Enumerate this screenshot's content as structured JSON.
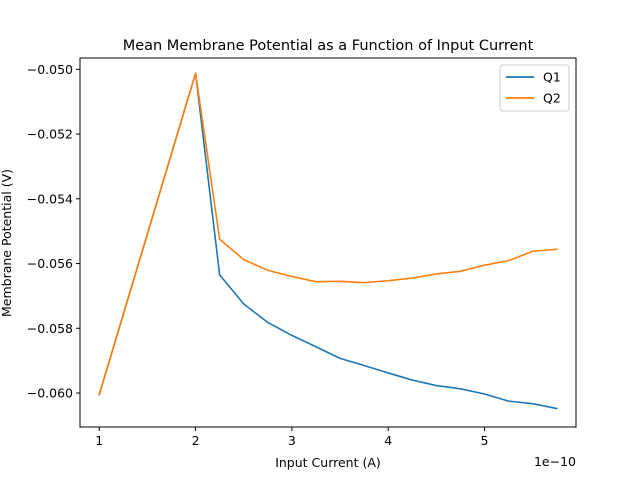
{
  "chart_data": {
    "type": "line",
    "title": "Mean Membrane Potential as a Function of Input Current",
    "xlabel": "Input Current (A)",
    "ylabel": "Membrane Potential (V)",
    "x_offset_label": "1e−10",
    "xlim": [
      0.8,
      5.95
    ],
    "ylim": [
      -0.06105,
      -0.04965
    ],
    "xticks": [
      1,
      2,
      3,
      4,
      5
    ],
    "xtick_labels": [
      "1",
      "2",
      "3",
      "4",
      "5"
    ],
    "yticks": [
      -0.06,
      -0.058,
      -0.056,
      -0.054,
      -0.052,
      -0.05
    ],
    "ytick_labels": [
      "−0.060",
      "−0.058",
      "−0.056",
      "−0.054",
      "−0.052",
      "−0.050"
    ],
    "grid": false,
    "legend_position": "top-right",
    "x": [
      1.0,
      2.0,
      2.25,
      2.5,
      2.75,
      3.0,
      3.25,
      3.5,
      3.75,
      4.0,
      4.25,
      4.5,
      4.75,
      5.0,
      5.25,
      5.5,
      5.75
    ],
    "series": [
      {
        "name": "Q1",
        "color": "#1f77b4",
        "values": [
          -0.06005,
          -0.05012,
          -0.05635,
          -0.05725,
          -0.05782,
          -0.05822,
          -0.05857,
          -0.05893,
          -0.05915,
          -0.05938,
          -0.0596,
          -0.05977,
          -0.05987,
          -0.06003,
          -0.06025,
          -0.06033,
          -0.06048
        ]
      },
      {
        "name": "Q2",
        "color": "#ff7f0e",
        "values": [
          -0.06005,
          -0.05012,
          -0.05525,
          -0.05588,
          -0.05621,
          -0.0564,
          -0.05656,
          -0.05655,
          -0.05659,
          -0.05653,
          -0.05645,
          -0.05632,
          -0.05624,
          -0.05605,
          -0.05591,
          -0.05562,
          -0.05556
        ]
      }
    ]
  }
}
